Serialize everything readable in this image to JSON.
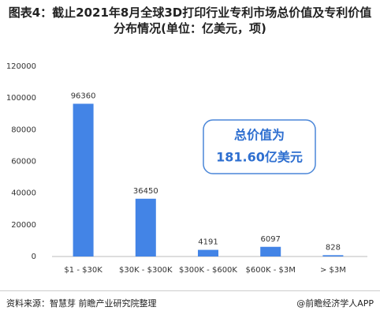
{
  "chart_data": {
    "type": "bar",
    "title": "图表4：截止2021年8月全球3D打印行业专利市场总价值及专利价值分布情况(单位：亿美元，项)",
    "categories": [
      "$1 - $30K",
      "$30K - $300K",
      "$300K - $600K",
      "$600K - $3M",
      "> $3M"
    ],
    "values": [
      96360,
      36450,
      4191,
      6097,
      828
    ],
    "color": "#4384e6",
    "ylim": [
      0,
      120000
    ],
    "yticks": [
      0,
      20000,
      40000,
      60000,
      80000,
      100000,
      120000
    ],
    "grid": false,
    "annotation": [
      "总价值为",
      "181.60亿美元"
    ],
    "source": "资料来源：智慧芽 前瞻产业研究院整理",
    "footer": "@前瞻经济学人APP"
  }
}
